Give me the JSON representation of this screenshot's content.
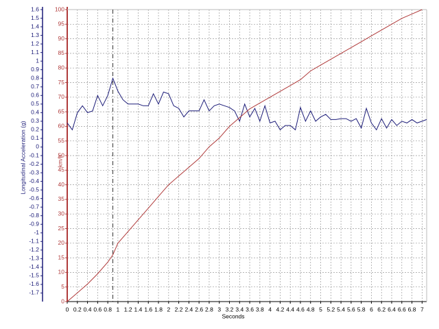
{
  "chart_data": {
    "type": "line",
    "xlabel": "Seconds",
    "ylabel": "Longitudinal Acceleration (g)",
    "y2label": "km/h",
    "xlim": [
      0,
      7.09
    ],
    "xticks": [
      0,
      0.2,
      0.4,
      0.6,
      0.8,
      1,
      1.2,
      1.4,
      1.6,
      1.8,
      2,
      2.2,
      2.4,
      2.6,
      2.8,
      3,
      3.2,
      3.4,
      3.6,
      3.8,
      4,
      4.2,
      4.4,
      4.6,
      4.8,
      5,
      5.2,
      5.4,
      5.6,
      5.8,
      6,
      6.2,
      6.4,
      6.6,
      6.8,
      7
    ],
    "ylim": [
      -1.8,
      1.6
    ],
    "yticks": [
      1.6,
      1.5,
      1.4,
      1.3,
      1.2,
      1.1,
      1,
      0.9,
      0.8,
      0.7,
      0.6,
      0.5,
      0.4,
      0.3,
      0.2,
      0.1,
      0,
      -0.1,
      -0.2,
      -0.3,
      -0.4,
      -0.5,
      -0.6,
      -0.7,
      -0.8,
      -0.9,
      -1,
      -1.1,
      -1.2,
      -1.3,
      -1.4,
      -1.5,
      -1.6,
      -1.7
    ],
    "y2lim": [
      0,
      100
    ],
    "y2ticks": [
      0,
      5,
      10,
      15,
      20,
      25,
      30,
      35,
      40,
      45,
      50,
      55,
      60,
      65,
      70,
      75,
      80,
      85,
      90,
      95,
      100
    ],
    "grid": true,
    "cursor_x": 0.9,
    "series": [
      {
        "color": "#1c1c78",
        "x": [
          0,
          0.1,
          0.2,
          0.3,
          0.4,
          0.5,
          0.6,
          0.7,
          0.8,
          0.9,
          1,
          1.1,
          1.2,
          1.3,
          1.4,
          1.5,
          1.6,
          1.7,
          1.8,
          1.9,
          2,
          2.1,
          2.2,
          2.3,
          2.4,
          2.5,
          2.6,
          2.7,
          2.8,
          2.9,
          3,
          3.1,
          3.2,
          3.3,
          3.4,
          3.5,
          3.6,
          3.7,
          3.8,
          3.9,
          4,
          4.1,
          4.2,
          4.3,
          4.4,
          4.5,
          4.6,
          4.7,
          4.8,
          4.9,
          5,
          5.1,
          5.2,
          5.3,
          5.4,
          5.5,
          5.6,
          5.7,
          5.8,
          5.9,
          6,
          6.1,
          6.2,
          6.3,
          6.4,
          6.5,
          6.6,
          6.7,
          6.8,
          6.9,
          7,
          7.09
        ],
        "values": [
          0.28,
          0.2,
          0.4,
          0.48,
          0.4,
          0.42,
          0.6,
          0.48,
          0.6,
          0.8,
          0.65,
          0.55,
          0.5,
          0.5,
          0.5,
          0.48,
          0.48,
          0.62,
          0.5,
          0.64,
          0.62,
          0.48,
          0.45,
          0.35,
          0.42,
          0.42,
          0.42,
          0.55,
          0.42,
          0.48,
          0.5,
          0.48,
          0.46,
          0.42,
          0.3,
          0.5,
          0.35,
          0.45,
          0.3,
          0.48,
          0.28,
          0.3,
          0.2,
          0.25,
          0.25,
          0.2,
          0.46,
          0.3,
          0.42,
          0.3,
          0.35,
          0.38,
          0.32,
          0.32,
          0.33,
          0.33,
          0.3,
          0.33,
          0.22,
          0.45,
          0.28,
          0.2,
          0.33,
          0.22,
          0.32,
          0.25,
          0.3,
          0.28,
          0.32,
          0.28,
          0.3,
          0.32
        ]
      },
      {
        "color": "#b03a3a",
        "axis": "y2",
        "x": [
          0,
          0.2,
          0.4,
          0.6,
          0.8,
          0.9,
          1,
          1.2,
          1.4,
          1.6,
          1.8,
          2,
          2.2,
          2.4,
          2.6,
          2.8,
          3,
          3.2,
          3.4,
          3.6,
          3.8,
          4,
          4.2,
          4.4,
          4.6,
          4.8,
          5,
          5.2,
          5.4,
          5.6,
          5.8,
          6,
          6.2,
          6.4,
          6.6,
          6.8,
          7
        ],
        "values": [
          0,
          3,
          6,
          9.5,
          13.5,
          16,
          20,
          24,
          28,
          32,
          36,
          40,
          43,
          46,
          49,
          53,
          56,
          60,
          63,
          66,
          68,
          70,
          72,
          74,
          76,
          79,
          81,
          83,
          85,
          87,
          89,
          91,
          93,
          95,
          97,
          98.5,
          100
        ]
      }
    ]
  }
}
